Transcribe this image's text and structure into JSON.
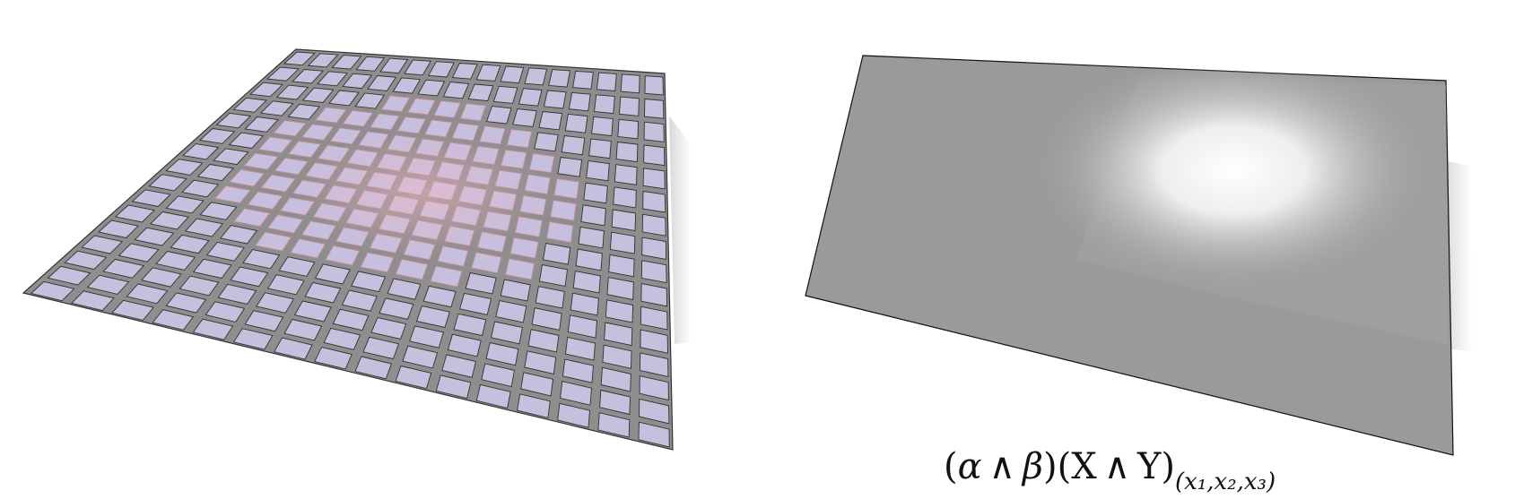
{
  "figure": {
    "left_panel": {
      "grid_rows": 16,
      "grid_cols": 16,
      "tile_color": "#c6bfdd",
      "highlight_color": "#e9b8c4",
      "frame_color": "#8c8c8c",
      "edge_color": "#333333"
    },
    "right_panel": {
      "surface_color": "#999999",
      "highlight_color": "#ffffff",
      "edge_color": "#111111"
    },
    "formula": {
      "open_paren_1": "(",
      "alpha": "α",
      "wedge_1": "∧",
      "beta": "β",
      "close_open": ")(",
      "X": "X",
      "wedge_2": "∧",
      "Y": "Y",
      "close_paren_2": ")",
      "subscript": "(x₁,x₂,x₃)"
    }
  }
}
